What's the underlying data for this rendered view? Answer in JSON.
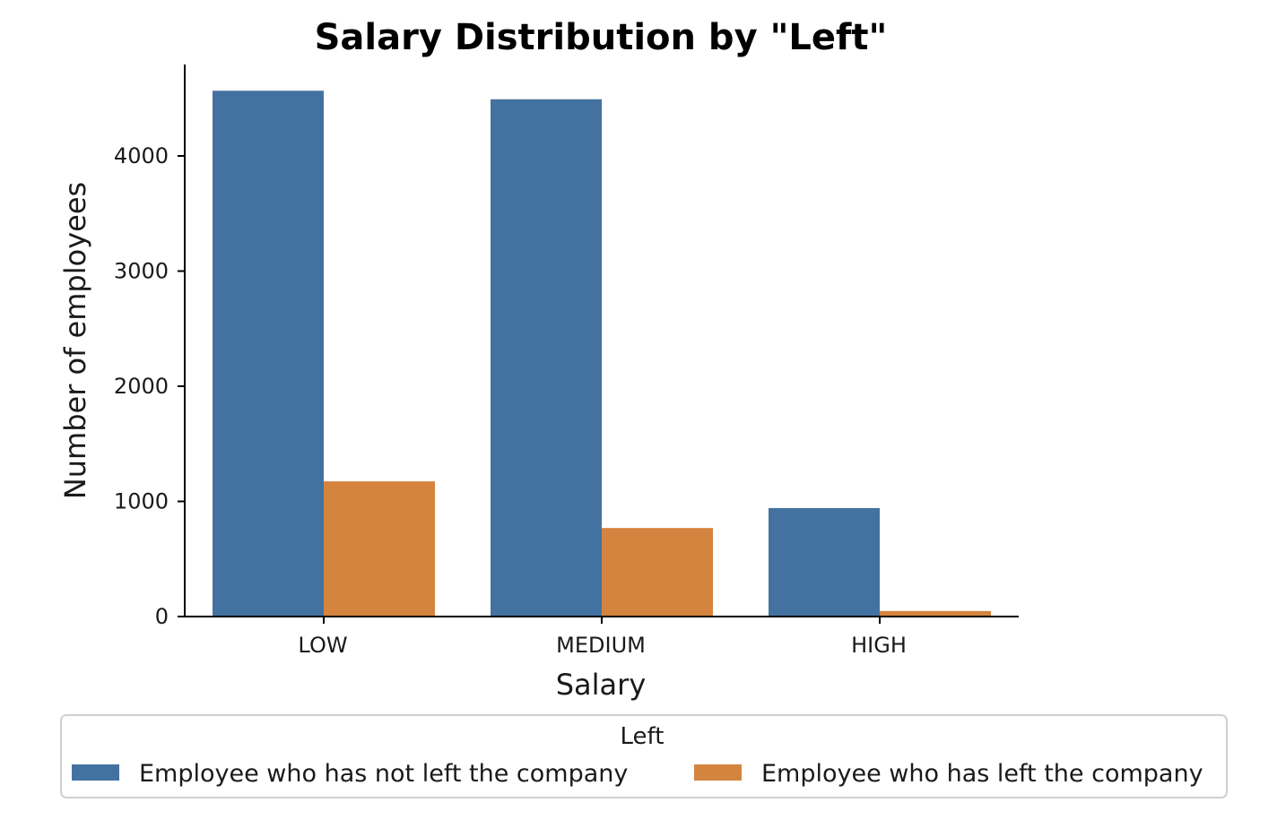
{
  "chart_data": {
    "type": "bar",
    "title": "Salary Distribution by \"Left\"",
    "xlabel": "Salary",
    "ylabel": "Number of employees",
    "categories": [
      "LOW",
      "MEDIUM",
      "HIGH"
    ],
    "ylim": [
      0,
      4800
    ],
    "yticks": [
      0,
      1000,
      2000,
      3000,
      4000
    ],
    "grid": false,
    "series": [
      {
        "name": "Employee who has not left the company",
        "color": "#4472a0",
        "values": [
          4566,
          4492,
          942
        ]
      },
      {
        "name": "Employee who has left the company",
        "color": "#d4843e",
        "values": [
          1174,
          769,
          48
        ]
      }
    ],
    "legend": {
      "title": "Left",
      "placement": "bottom-center, below axes"
    }
  }
}
